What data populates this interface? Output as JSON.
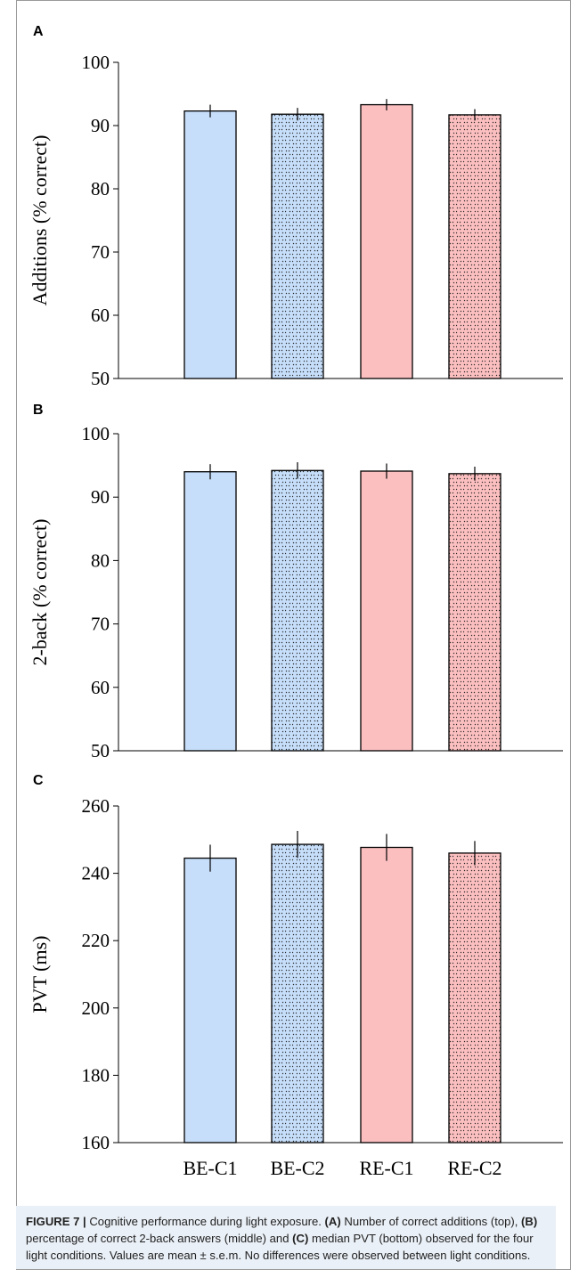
{
  "categories": [
    "BE-C1",
    "BE-C2",
    "RE-C1",
    "RE-C2"
  ],
  "colors": {
    "blue": "#c6def9",
    "red": "#fbbfc0",
    "pattern": "#1a1a1a"
  },
  "chart_data": [
    {
      "type": "bar",
      "panel_label": "A",
      "title": "",
      "xlabel": "",
      "ylabel": "Additions (% correct)",
      "ylim": [
        50,
        100
      ],
      "yticks": [
        "50",
        "60",
        "70",
        "80",
        "90",
        "100"
      ],
      "categories": [
        "BE-C1",
        "BE-C2",
        "RE-C1",
        "RE-C2"
      ],
      "values": [
        92.3,
        91.8,
        93.3,
        91.7
      ],
      "errors": [
        1.0,
        1.0,
        0.9,
        0.9
      ]
    },
    {
      "type": "bar",
      "panel_label": "B",
      "title": "",
      "xlabel": "",
      "ylabel": "2-back (% correct)",
      "ylim": [
        50,
        100
      ],
      "yticks": [
        "50",
        "60",
        "70",
        "80",
        "90",
        "100"
      ],
      "categories": [
        "BE-C1",
        "BE-C2",
        "RE-C1",
        "RE-C2"
      ],
      "values": [
        94.0,
        94.2,
        94.1,
        93.7
      ],
      "errors": [
        1.2,
        1.3,
        1.2,
        1.1
      ]
    },
    {
      "type": "bar",
      "panel_label": "C",
      "title": "",
      "xlabel": "",
      "ylabel": "PVT (ms)",
      "ylim": [
        160,
        260
      ],
      "yticks": [
        "160",
        "180",
        "200",
        "220",
        "240",
        "260"
      ],
      "categories": [
        "BE-C1",
        "BE-C2",
        "RE-C1",
        "RE-C2"
      ],
      "values": [
        244.5,
        248.6,
        247.7,
        246.0
      ],
      "errors": [
        4.0,
        4.0,
        4.0,
        3.6
      ]
    }
  ],
  "caption": {
    "label": "FIGURE 7 |",
    "text1": " Cognitive performance during light exposure. ",
    "a_label": "(A)",
    "text2": " Number of correct additions (top), ",
    "b_label": "(B)",
    "text3": " percentage of correct 2-back answers (middle) and ",
    "c_label": "(C)",
    "text4": " median PVT (bottom) observed for the four light conditions. Values are mean ± s.e.m. No differences were observed between light conditions."
  }
}
